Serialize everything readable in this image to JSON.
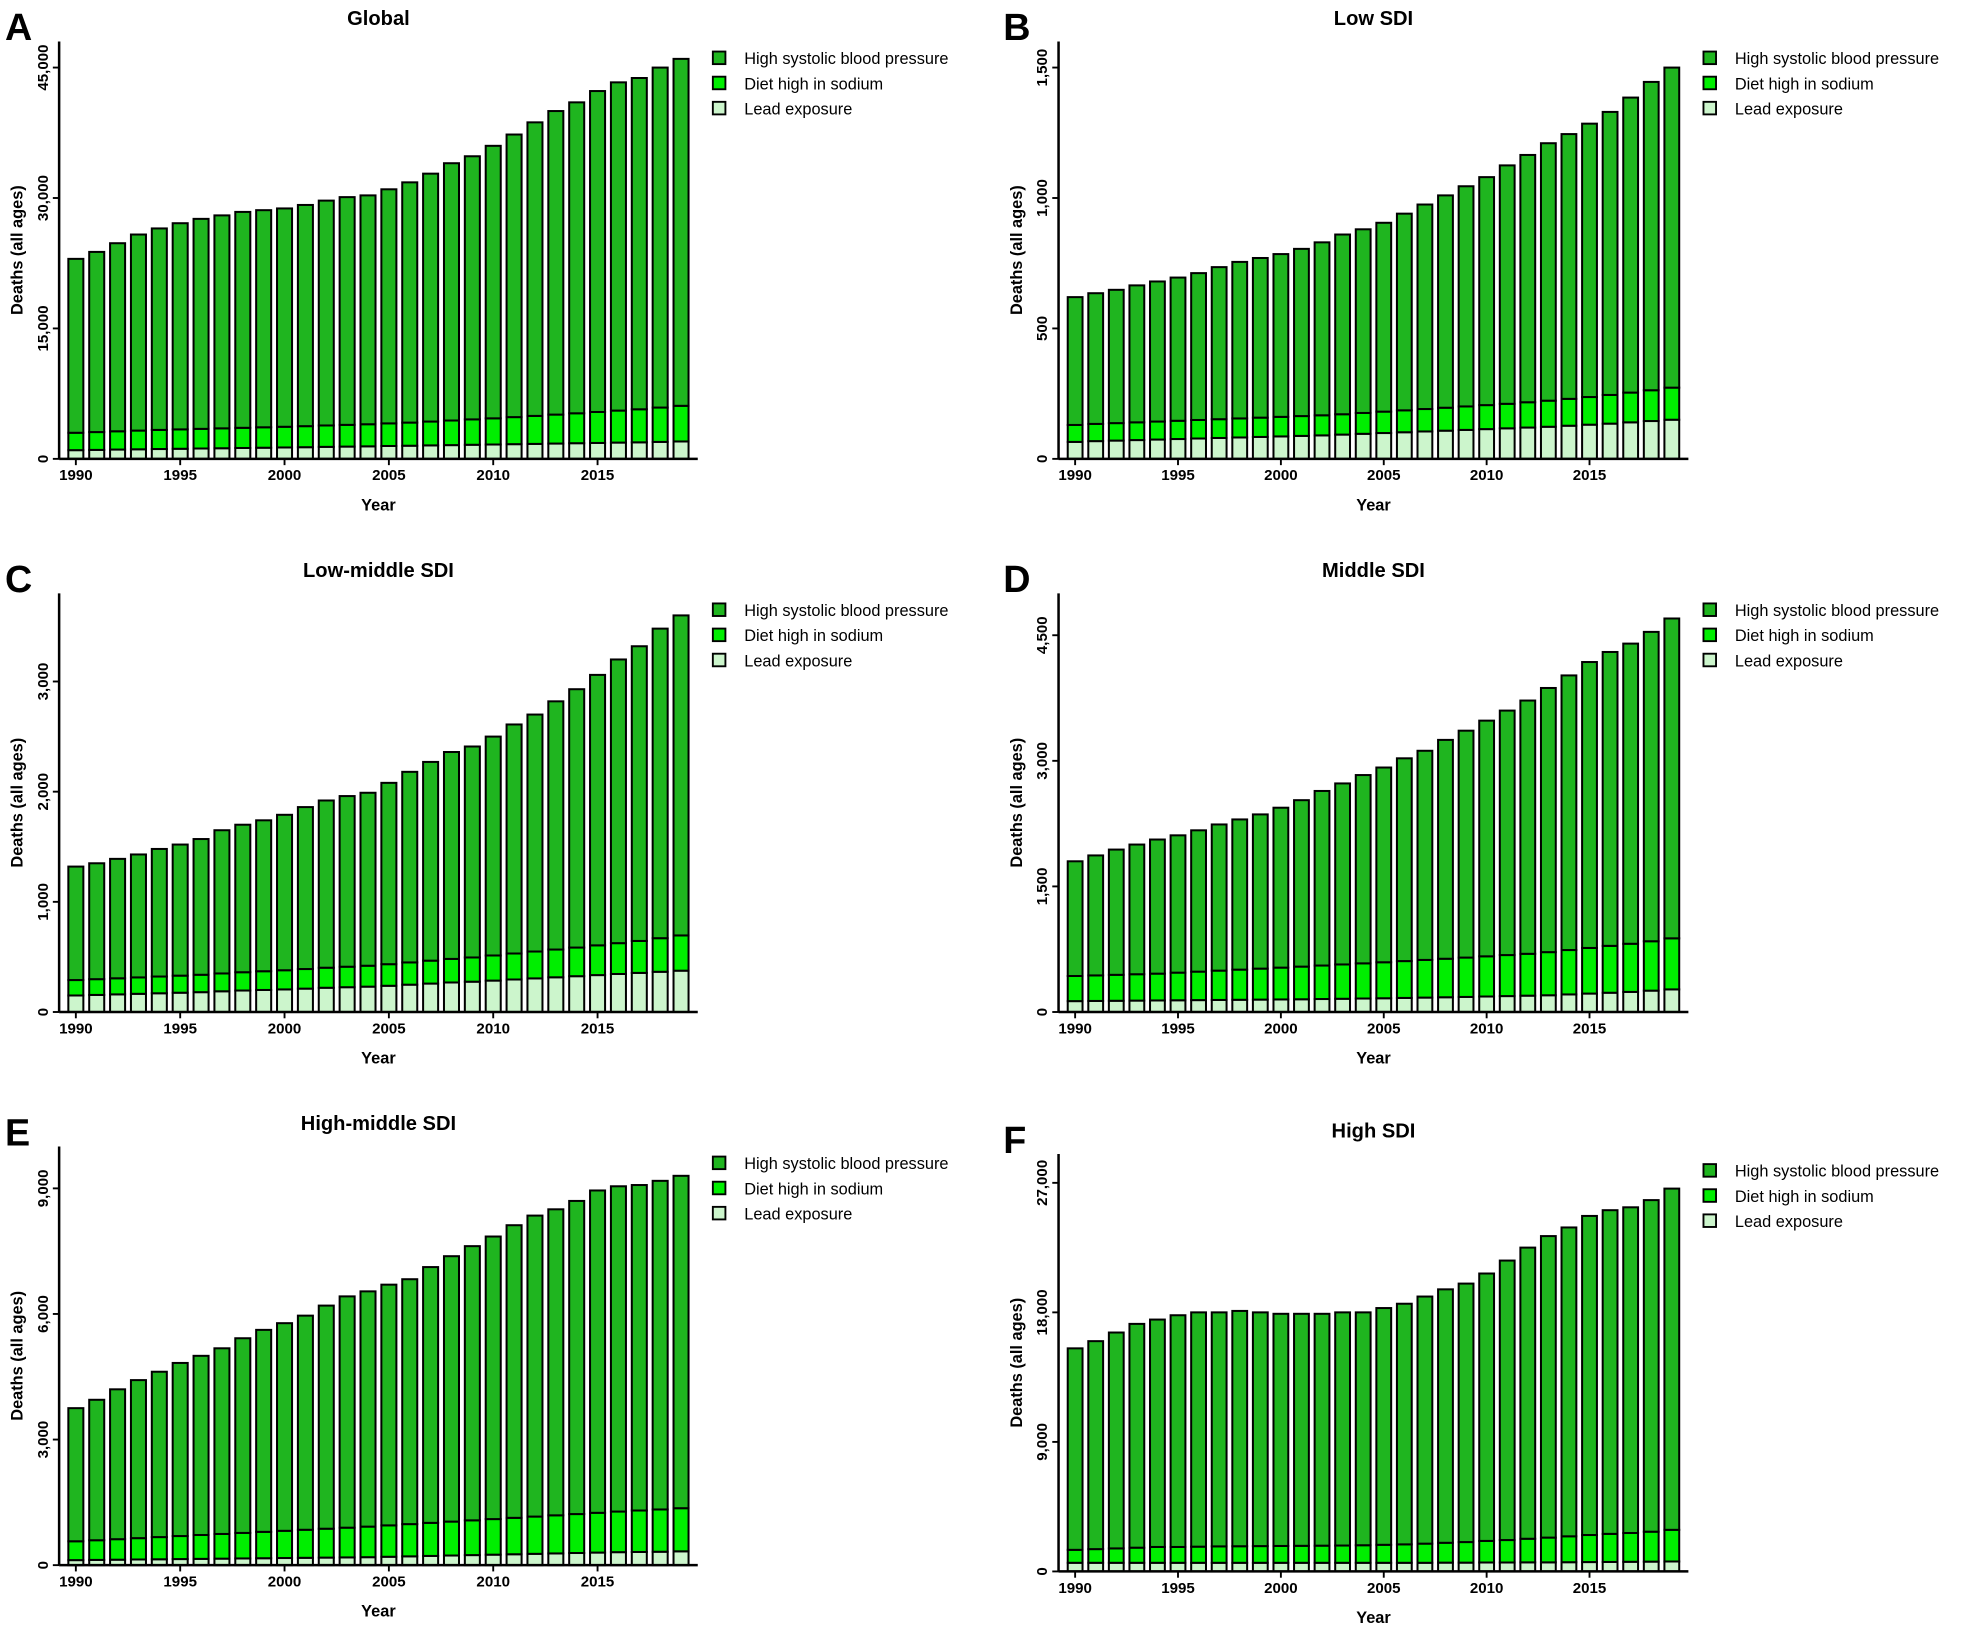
{
  "chart_data": [
    {
      "type": "bar",
      "stacked": true,
      "label": "A",
      "title": "Global",
      "x_label": "Year",
      "y_label": "Deaths (all ages)",
      "categories": [
        1990,
        null,
        null,
        null,
        null,
        1995,
        null,
        null,
        null,
        null,
        2000,
        null,
        null,
        null,
        null,
        2005,
        null,
        null,
        null,
        null,
        2010,
        null,
        null,
        null,
        null,
        2015,
        null,
        null,
        null,
        null
      ],
      "ylim": [
        0,
        48000
      ],
      "yticks": [
        0,
        {
          "value": 15000,
          "label": "15,000"
        },
        {
          "value": 30000,
          "label": "30,000"
        },
        {
          "value": 45000,
          "label": "45,000"
        }
      ],
      "series": [
        {
          "name": "Lead exposure",
          "color": "#ccf5cc",
          "values": [
            1000,
            1030,
            1070,
            1100,
            1130,
            1160,
            1190,
            1220,
            1250,
            1280,
            1310,
            1340,
            1380,
            1410,
            1440,
            1480,
            1510,
            1550,
            1580,
            1620,
            1650,
            1690,
            1720,
            1760,
            1800,
            1830,
            1870,
            1900,
            1950,
            2000
          ]
        },
        {
          "name": "Diet high in sodium",
          "color": "#00ee00",
          "values": [
            2000,
            2050,
            2100,
            2150,
            2200,
            2230,
            2260,
            2290,
            2320,
            2350,
            2380,
            2420,
            2460,
            2500,
            2540,
            2600,
            2660,
            2740,
            2830,
            2920,
            3010,
            3110,
            3220,
            3330,
            3440,
            3560,
            3680,
            3800,
            3950,
            4100
          ]
        },
        {
          "name": "High systolic blood pressure",
          "color": "#1fb51f",
          "values": [
            20000,
            20720,
            21630,
            22550,
            23170,
            23710,
            24150,
            24490,
            24830,
            24970,
            25110,
            25440,
            25860,
            26190,
            26320,
            26920,
            27630,
            28510,
            29590,
            30260,
            31340,
            32500,
            33760,
            34910,
            35760,
            36910,
            37750,
            38100,
            39100,
            39900
          ]
        }
      ]
    },
    {
      "type": "bar",
      "stacked": true,
      "label": "B",
      "title": "Low SDI",
      "x_label": "Year",
      "y_label": "Deaths (all ages)",
      "categories": [
        1990,
        null,
        null,
        null,
        null,
        1995,
        null,
        null,
        null,
        null,
        2000,
        null,
        null,
        null,
        null,
        2005,
        null,
        null,
        null,
        null,
        2010,
        null,
        null,
        null,
        null,
        2015,
        null,
        null,
        null,
        null
      ],
      "ylim": [
        0,
        1600
      ],
      "yticks": [
        0,
        500,
        {
          "value": 1000,
          "label": "1,000"
        },
        {
          "value": 1500,
          "label": "1,500"
        }
      ],
      "series": [
        {
          "name": "Lead exposure",
          "color": "#ccf5cc",
          "values": [
            65,
            68,
            70,
            72,
            74,
            76,
            78,
            80,
            82,
            84,
            86,
            88,
            90,
            93,
            96,
            99,
            102,
            105,
            108,
            111,
            114,
            117,
            120,
            123,
            127,
            131,
            135,
            140,
            145,
            150
          ]
        },
        {
          "name": "Diet high in sodium",
          "color": "#00ee00",
          "values": [
            65,
            66,
            67,
            68,
            69,
            70,
            71,
            72,
            73,
            74,
            75,
            76,
            77,
            78,
            80,
            82,
            84,
            86,
            88,
            90,
            92,
            94,
            97,
            100,
            103,
            106,
            110,
            114,
            118,
            123
          ]
        },
        {
          "name": "High systolic blood pressure",
          "color": "#1fb51f",
          "values": [
            490,
            501,
            511,
            525,
            537,
            549,
            563,
            583,
            600,
            612,
            624,
            641,
            663,
            689,
            704,
            724,
            754,
            784,
            814,
            844,
            874,
            914,
            948,
            987,
            1015,
            1048,
            1085,
            1131,
            1182,
            1227
          ]
        }
      ]
    },
    {
      "type": "bar",
      "stacked": true,
      "label": "C",
      "title": "Low-middle SDI",
      "x_label": "Year",
      "y_label": "Deaths (all ages)",
      "categories": [
        1990,
        null,
        null,
        null,
        null,
        1995,
        null,
        null,
        null,
        null,
        2000,
        null,
        null,
        null,
        null,
        2005,
        null,
        null,
        null,
        null,
        2010,
        null,
        null,
        null,
        null,
        2015,
        null,
        null,
        null,
        null
      ],
      "ylim": [
        0,
        3800
      ],
      "yticks": [
        0,
        {
          "value": 1000,
          "label": "1,000"
        },
        {
          "value": 2000,
          "label": "2,000"
        },
        {
          "value": 3000,
          "label": "3,000"
        }
      ],
      "series": [
        {
          "name": "Lead exposure",
          "color": "#ccf5cc",
          "values": [
            150,
            155,
            160,
            165,
            170,
            175,
            180,
            188,
            195,
            200,
            205,
            212,
            220,
            225,
            230,
            238,
            248,
            258,
            268,
            275,
            285,
            295,
            305,
            315,
            325,
            335,
            345,
            355,
            365,
            375
          ]
        },
        {
          "name": "Diet high in sodium",
          "color": "#00ee00",
          "values": [
            140,
            143,
            146,
            149,
            152,
            155,
            158,
            162,
            166,
            170,
            174,
            178,
            182,
            186,
            190,
            196,
            202,
            208,
            214,
            220,
            228,
            236,
            244,
            252,
            260,
            270,
            280,
            290,
            305,
            320
          ]
        },
        {
          "name": "High systolic blood pressure",
          "color": "#1fb51f",
          "values": [
            1030,
            1052,
            1084,
            1116,
            1158,
            1190,
            1232,
            1300,
            1339,
            1370,
            1411,
            1470,
            1518,
            1549,
            1570,
            1646,
            1730,
            1804,
            1878,
            1915,
            1987,
            2079,
            2151,
            2253,
            2345,
            2455,
            2575,
            2675,
            2810,
            2905
          ]
        }
      ]
    },
    {
      "type": "bar",
      "stacked": true,
      "label": "D",
      "title": "Middle SDI",
      "x_label": "Year",
      "y_label": "Deaths (all ages)",
      "categories": [
        1990,
        null,
        null,
        null,
        null,
        1995,
        null,
        null,
        null,
        null,
        2000,
        null,
        null,
        null,
        null,
        2005,
        null,
        null,
        null,
        null,
        2010,
        null,
        null,
        null,
        null,
        2015,
        null,
        null,
        null,
        null
      ],
      "ylim": [
        0,
        5000
      ],
      "yticks": [
        0,
        {
          "value": 1500,
          "label": "1,500"
        },
        {
          "value": 3000,
          "label": "3,000"
        },
        {
          "value": 4500,
          "label": "4,500"
        }
      ],
      "series": [
        {
          "name": "Lead exposure",
          "color": "#ccf5cc",
          "values": [
            130,
            132,
            134,
            136,
            138,
            140,
            142,
            144,
            146,
            148,
            150,
            152,
            155,
            158,
            161,
            164,
            168,
            172,
            176,
            180,
            185,
            190,
            195,
            200,
            210,
            220,
            230,
            240,
            255,
            270
          ]
        },
        {
          "name": "Diet high in sodium",
          "color": "#00ee00",
          "values": [
            300,
            305,
            310,
            315,
            320,
            330,
            340,
            350,
            360,
            370,
            380,
            390,
            400,
            410,
            420,
            430,
            440,
            450,
            460,
            470,
            480,
            490,
            500,
            515,
            530,
            545,
            560,
            575,
            590,
            610
          ]
        },
        {
          "name": "High systolic blood pressure",
          "color": "#1fb51f",
          "values": [
            1370,
            1433,
            1496,
            1549,
            1602,
            1640,
            1688,
            1746,
            1794,
            1842,
            1910,
            1988,
            2085,
            2162,
            2249,
            2326,
            2422,
            2498,
            2614,
            2710,
            2815,
            2920,
            3025,
            3155,
            3280,
            3415,
            3510,
            3585,
            3695,
            3820
          ]
        }
      ]
    },
    {
      "type": "bar",
      "stacked": true,
      "label": "E",
      "title": "High-middle SDI",
      "x_label": "Year",
      "y_label": "Deaths (all ages)",
      "categories": [
        1990,
        null,
        null,
        null,
        null,
        1995,
        null,
        null,
        null,
        null,
        2000,
        null,
        null,
        null,
        null,
        2005,
        null,
        null,
        null,
        null,
        2010,
        null,
        null,
        null,
        null,
        2015,
        null,
        null,
        null,
        null
      ],
      "ylim": [
        0,
        10000
      ],
      "yticks": [
        0,
        {
          "value": 3000,
          "label": "3,000"
        },
        {
          "value": 6000,
          "label": "6,000"
        },
        {
          "value": 9000,
          "label": "9,000"
        }
      ],
      "series": [
        {
          "name": "Lead exposure",
          "color": "#ccf5cc",
          "values": [
            120,
            125,
            130,
            135,
            140,
            145,
            150,
            155,
            160,
            165,
            170,
            175,
            180,
            185,
            190,
            200,
            210,
            220,
            230,
            240,
            250,
            260,
            270,
            280,
            290,
            300,
            310,
            315,
            320,
            330
          ]
        },
        {
          "name": "Diet high in sodium",
          "color": "#00ee00",
          "values": [
            450,
            470,
            490,
            510,
            530,
            550,
            570,
            590,
            610,
            630,
            650,
            670,
            690,
            710,
            730,
            750,
            770,
            790,
            810,
            830,
            850,
            870,
            890,
            910,
            930,
            950,
            970,
            990,
            1010,
            1030
          ]
        },
        {
          "name": "High systolic blood pressure",
          "color": "#1fb51f",
          "values": [
            3180,
            3355,
            3580,
            3775,
            3950,
            4135,
            4280,
            4435,
            4650,
            4825,
            4960,
            5115,
            5330,
            5525,
            5620,
            5750,
            5850,
            6110,
            6340,
            6550,
            6750,
            6990,
            7190,
            7310,
            7480,
            7700,
            7770,
            7775,
            7850,
            7940
          ]
        }
      ]
    },
    {
      "type": "bar",
      "stacked": true,
      "label": "F",
      "title": "High SDI",
      "x_label": "Year",
      "y_label": "Deaths (all ages)",
      "categories": [
        1990,
        null,
        null,
        null,
        null,
        1995,
        null,
        null,
        null,
        null,
        2000,
        null,
        null,
        null,
        null,
        2005,
        null,
        null,
        null,
        null,
        2010,
        null,
        null,
        null,
        null,
        2015,
        null,
        null,
        null,
        null
      ],
      "ylim": [
        0,
        29000
      ],
      "yticks": [
        0,
        {
          "value": 9000,
          "label": "9,000"
        },
        {
          "value": 18000,
          "label": "18,000"
        },
        {
          "value": 27000,
          "label": "27,000"
        }
      ],
      "series": [
        {
          "name": "Lead exposure",
          "color": "#ccf5cc",
          "values": [
            600,
            600,
            600,
            600,
            600,
            600,
            600,
            600,
            600,
            600,
            600,
            600,
            600,
            600,
            600,
            600,
            600,
            600,
            610,
            610,
            620,
            620,
            630,
            630,
            640,
            650,
            660,
            670,
            680,
            690
          ]
        },
        {
          "name": "Diet high in sodium",
          "color": "#00ee00",
          "values": [
            900,
            950,
            1000,
            1050,
            1100,
            1100,
            1120,
            1140,
            1150,
            1160,
            1170,
            1180,
            1190,
            1200,
            1220,
            1250,
            1280,
            1330,
            1380,
            1430,
            1500,
            1560,
            1640,
            1720,
            1800,
            1880,
            1950,
            2000,
            2080,
            2200
          ]
        },
        {
          "name": "High systolic blood pressure",
          "color": "#1fb51f",
          "values": [
            14000,
            14450,
            15000,
            15550,
            15800,
            16100,
            16280,
            16260,
            16350,
            16240,
            16130,
            16120,
            16110,
            16200,
            16180,
            16450,
            16720,
            17170,
            17610,
            17960,
            18580,
            19420,
            20230,
            20950,
            21460,
            22170,
            22490,
            22630,
            23040,
            23710
          ]
        }
      ]
    }
  ]
}
